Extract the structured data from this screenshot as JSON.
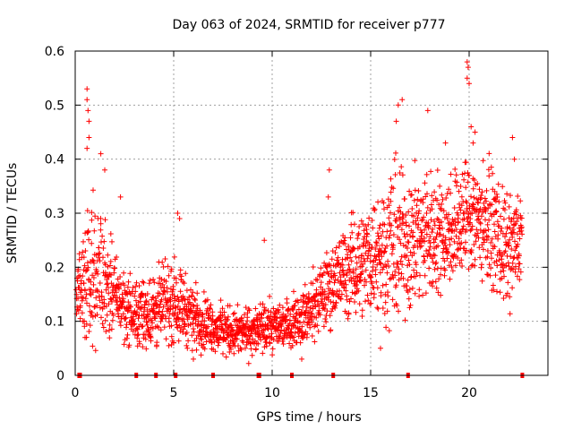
{
  "chart_data": {
    "type": "scatter",
    "title": "Day 063 of 2024, SRMTID for receiver p777",
    "xlabel": "GPS time / hours",
    "ylabel": "SRMTID / TECUs",
    "xlim": [
      0,
      24
    ],
    "ylim": [
      0,
      0.6
    ],
    "xticks": [
      0,
      5,
      10,
      15,
      20
    ],
    "yticks": [
      0,
      0.1,
      0.2,
      0.3,
      0.4,
      0.5,
      0.6
    ],
    "xtick_labels": [
      "0",
      "5",
      "10",
      "15",
      "20"
    ],
    "ytick_labels": [
      "0",
      "0.1",
      "0.2",
      "0.3",
      "0.4",
      "0.5",
      "0.6"
    ],
    "grid": true,
    "marker": "+",
    "series_color": "#ff0000",
    "zero_markers_x": [
      0.2,
      0.25,
      3.1,
      4.1,
      5.1,
      7.0,
      9.3,
      9.35,
      11.0,
      13.1,
      16.9,
      22.7
    ],
    "envelope": {
      "hours": [
        0,
        0.5,
        1,
        1.5,
        2,
        3,
        4,
        5,
        6,
        7,
        8,
        9,
        10,
        11,
        12,
        13,
        14,
        15,
        16,
        17,
        18,
        19,
        20,
        21,
        22,
        22.7
      ],
      "median": [
        0.15,
        0.17,
        0.2,
        0.18,
        0.15,
        0.11,
        0.12,
        0.14,
        0.11,
        0.09,
        0.08,
        0.08,
        0.09,
        0.1,
        0.12,
        0.17,
        0.2,
        0.22,
        0.24,
        0.25,
        0.26,
        0.27,
        0.3,
        0.28,
        0.22,
        0.26
      ],
      "spread": [
        0.04,
        0.08,
        0.09,
        0.07,
        0.05,
        0.04,
        0.05,
        0.05,
        0.04,
        0.03,
        0.03,
        0.03,
        0.03,
        0.03,
        0.04,
        0.05,
        0.06,
        0.07,
        0.1,
        0.09,
        0.08,
        0.07,
        0.08,
        0.07,
        0.07,
        0.06
      ]
    },
    "highlights": [
      {
        "x": 0.6,
        "y": 0.53
      },
      {
        "x": 0.6,
        "y": 0.51
      },
      {
        "x": 0.65,
        "y": 0.49
      },
      {
        "x": 0.7,
        "y": 0.47
      },
      {
        "x": 0.7,
        "y": 0.44
      },
      {
        "x": 0.6,
        "y": 0.42
      },
      {
        "x": 1.3,
        "y": 0.41
      },
      {
        "x": 1.5,
        "y": 0.38
      },
      {
        "x": 2.3,
        "y": 0.33
      },
      {
        "x": 5.2,
        "y": 0.3
      },
      {
        "x": 5.3,
        "y": 0.29
      },
      {
        "x": 9.6,
        "y": 0.25
      },
      {
        "x": 12.9,
        "y": 0.38
      },
      {
        "x": 12.85,
        "y": 0.33
      },
      {
        "x": 16.4,
        "y": 0.5
      },
      {
        "x": 16.6,
        "y": 0.51
      },
      {
        "x": 16.3,
        "y": 0.47
      },
      {
        "x": 17.9,
        "y": 0.49
      },
      {
        "x": 18.8,
        "y": 0.43
      },
      {
        "x": 19.9,
        "y": 0.58
      },
      {
        "x": 19.95,
        "y": 0.57
      },
      {
        "x": 19.9,
        "y": 0.55
      },
      {
        "x": 20.0,
        "y": 0.54
      },
      {
        "x": 20.1,
        "y": 0.46
      },
      {
        "x": 20.3,
        "y": 0.45
      },
      {
        "x": 20.2,
        "y": 0.43
      },
      {
        "x": 21.3,
        "y": 0.34
      },
      {
        "x": 22.2,
        "y": 0.44
      },
      {
        "x": 22.3,
        "y": 0.4
      },
      {
        "x": 0.5,
        "y": 0.07
      },
      {
        "x": 5.0,
        "y": 0.06
      },
      {
        "x": 6.0,
        "y": 0.03
      },
      {
        "x": 7.5,
        "y": 0.04
      },
      {
        "x": 11.5,
        "y": 0.03
      },
      {
        "x": 15.5,
        "y": 0.05
      }
    ]
  }
}
